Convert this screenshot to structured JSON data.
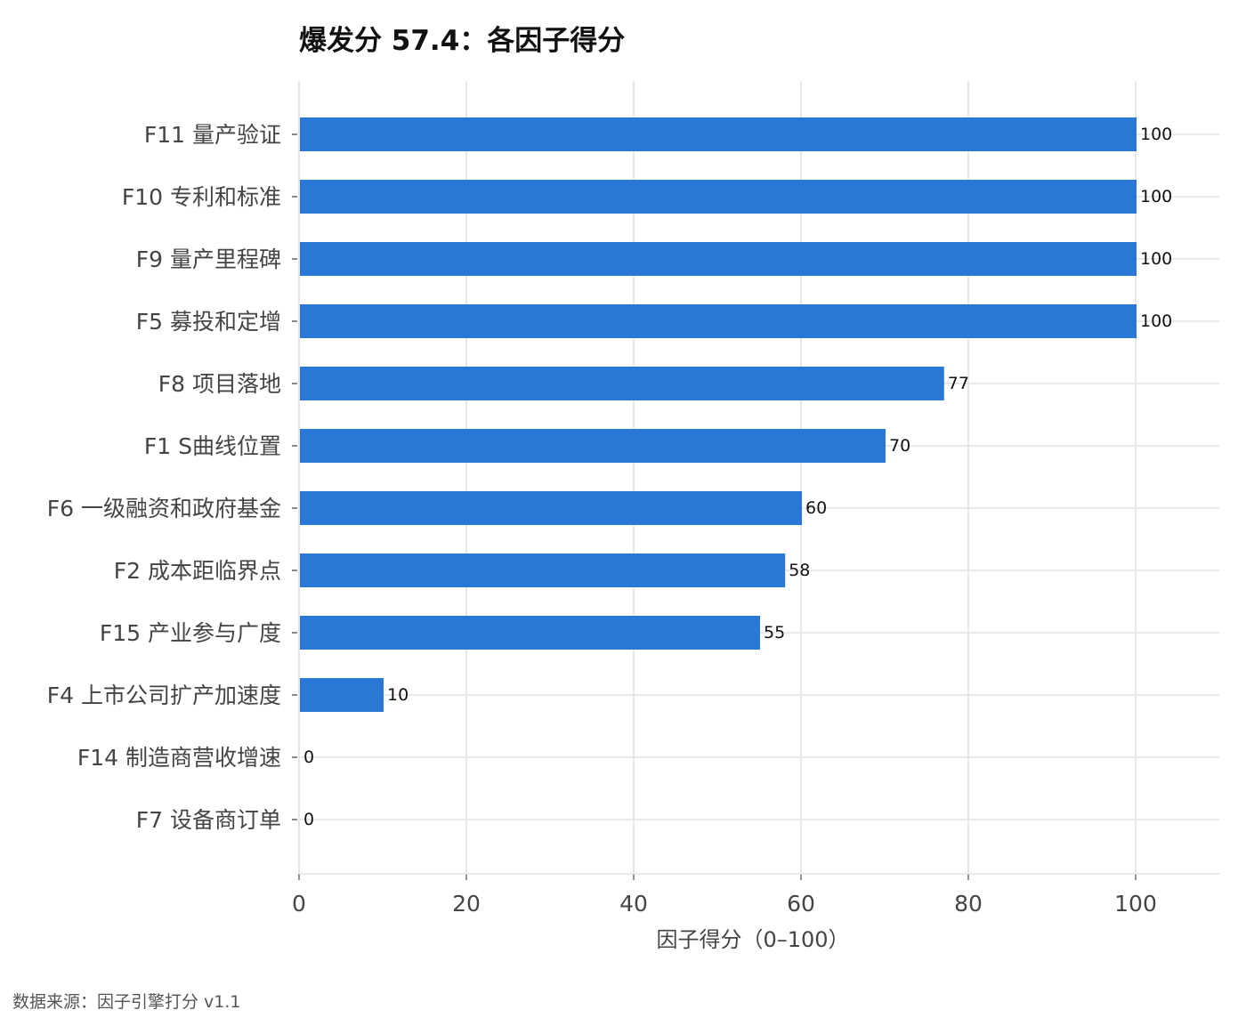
{
  "chart_data": {
    "type": "bar",
    "orientation": "horizontal",
    "title": "爆发分 57.4：各因子得分",
    "xlabel": "因子得分（0–100）",
    "ylabel": "",
    "xlim": [
      0,
      100
    ],
    "xticks": [
      0,
      20,
      40,
      60,
      80,
      100
    ],
    "grid": true,
    "legend": "none",
    "categories": [
      "F11 量产验证",
      "F10 专利和标准",
      "F9 量产里程碑",
      "F5 募投和定增",
      "F8 项目落地",
      "F1 S曲线位置",
      "F6 一级融资和政府基金",
      "F2 成本距临界点",
      "F15 产业参与广度",
      "F4 上市公司扩产加速度",
      "F14 制造商营收增速",
      "F7 设备商订单"
    ],
    "values": [
      100,
      100,
      100,
      100,
      77,
      70,
      60,
      58,
      55,
      10,
      0,
      0
    ],
    "value_labels": [
      "100",
      "100",
      "100",
      "100",
      "77",
      "70",
      "60",
      "58",
      "55",
      "10",
      "0",
      "0"
    ],
    "bar_color": "#2a78d6",
    "grid_color": "#e3e3e3"
  },
  "footer": {
    "source": "数据来源：因子引擎打分 v1.1"
  }
}
